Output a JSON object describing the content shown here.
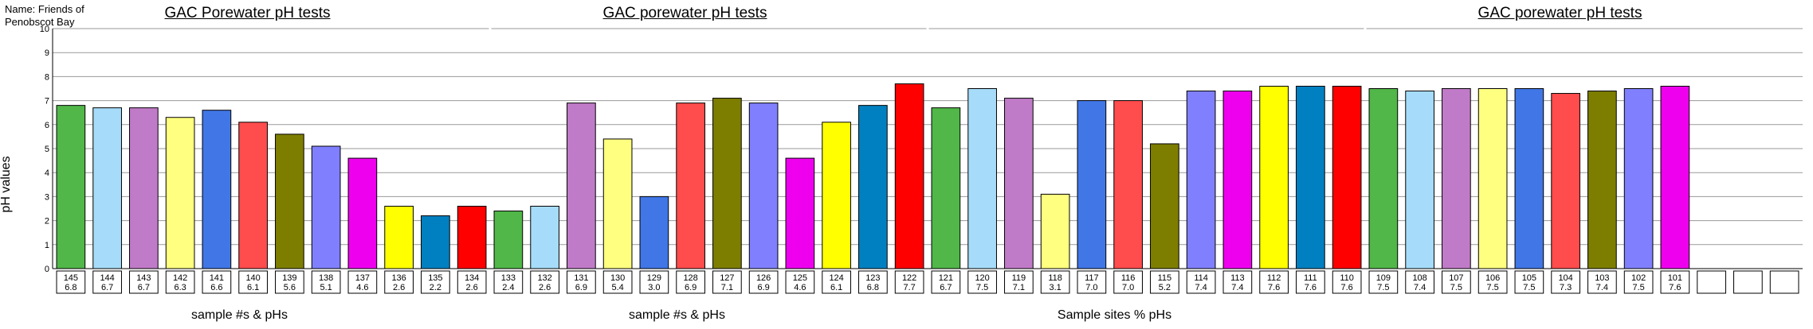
{
  "name_label": "Name: Friends of Penobscot Bay",
  "ylabel": "pH values",
  "chart_data": {
    "type": "bar",
    "ylabel": "pH values",
    "ylim": [
      0,
      10
    ],
    "yticks": [
      0,
      1,
      2,
      3,
      4,
      5,
      6,
      7,
      8,
      9,
      10
    ],
    "grid": true,
    "panels": [
      {
        "title": "GAC Porewater pH tests",
        "xlabel": "sample #s  & pHs",
        "categories": [
          "145",
          "144",
          "143",
          "142",
          "141",
          "140",
          "139",
          "138",
          "137",
          "136",
          "135",
          "134"
        ],
        "values": [
          6.8,
          6.7,
          6.7,
          6.3,
          6.6,
          6.1,
          5.6,
          5.1,
          4.6,
          2.6,
          2.2,
          2.6
        ]
      },
      {
        "title": "GAC porewater pH tests",
        "xlabel": "sample #s  & pHs",
        "categories": [
          "133",
          "132",
          "131",
          "130",
          "129",
          "128",
          "127",
          "126",
          "125",
          "124",
          "123",
          "122"
        ],
        "values": [
          2.4,
          2.6,
          6.9,
          5.4,
          3.0,
          6.9,
          7.1,
          6.9,
          4.6,
          6.1,
          6.8,
          7.7
        ]
      },
      {
        "title": "",
        "xlabel": "Sample sites % pHs",
        "categories": [
          "121",
          "120",
          "119",
          "118",
          "117",
          "116",
          "115",
          "114",
          "113",
          "112",
          "111",
          "110"
        ],
        "values": [
          6.7,
          7.5,
          7.1,
          3.1,
          7.0,
          7.0,
          5.2,
          7.4,
          7.4,
          7.6,
          7.6,
          7.6
        ]
      },
      {
        "title": "GAC porewater  pH tests",
        "xlabel": "",
        "categories": [
          "109",
          "108",
          "107",
          "106",
          "105",
          "104",
          "103",
          "102",
          "101",
          "",
          "",
          " "
        ],
        "values": [
          7.5,
          7.4,
          7.5,
          7.5,
          7.5,
          7.3,
          7.4,
          7.5,
          7.6,
          null,
          null,
          null
        ]
      }
    ]
  },
  "colors": [
    "#50b748",
    "#a6dcf9",
    "#c07bc8",
    "#ffff80",
    "#4176e6",
    "#ff4c4c",
    "#7d7d00",
    "#8080ff",
    "#ee00ee",
    "#ffff00",
    "#0080c0",
    "#ff0000"
  ],
  "value_labels": [
    [
      "6.8",
      "6.7",
      "6.7",
      "6.3",
      "6.6",
      "6.1",
      "5.6",
      "5.1",
      "4.6",
      "2.6",
      "2.2",
      "2.6"
    ],
    [
      "2.4",
      "2.6",
      "6.9",
      "5.4",
      "3.0",
      "6.9",
      "7.1",
      "6.9",
      "4.6",
      "6.1",
      "6.8",
      "7.7"
    ],
    [
      "6.7",
      "7.5",
      "7.1",
      "3.1",
      "7.0",
      "7.0",
      "5.2",
      "7.4",
      "7.4",
      "7.6",
      "7.6",
      "7.6"
    ],
    [
      "7.5",
      "7.4",
      "7.5",
      "7.5",
      "7.5",
      "7.3",
      "7.4",
      "7.5",
      "7.6",
      "",
      "",
      ""
    ]
  ]
}
